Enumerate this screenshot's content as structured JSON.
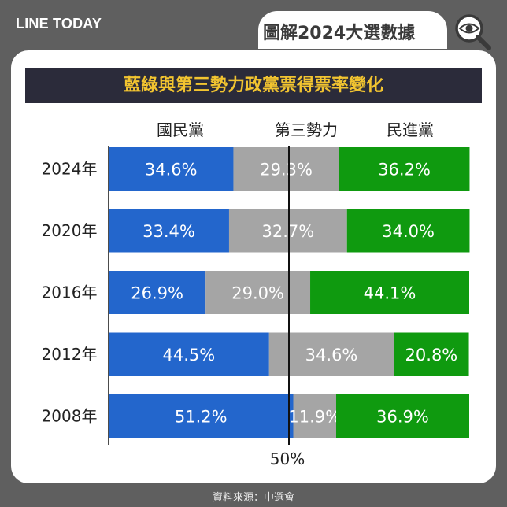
{
  "brand": "LINE TODAY",
  "header_badge": "圖解2024大選數據",
  "banner_title": "藍綠與第三勢力政黨票得票率變化",
  "source": "資料來源：中選會",
  "colors": {
    "kmt": "#2366cc",
    "third": "#a5a5a5",
    "dpp": "#0f9a0f",
    "banner_bg": "#2b2b3a",
    "banner_text": "#f2c430"
  },
  "chart_data": {
    "type": "bar",
    "stacked": "horizontal-100%",
    "categories": [
      "2024年",
      "2020年",
      "2016年",
      "2012年",
      "2008年"
    ],
    "series": [
      {
        "name": "國民黨",
        "values": [
          34.6,
          33.4,
          26.9,
          44.5,
          51.2
        ],
        "labels": [
          "34.6%",
          "33.4%",
          "26.9%",
          "44.5%",
          "51.2%"
        ]
      },
      {
        "name": "第三勢力",
        "values": [
          29.3,
          32.7,
          29.0,
          34.6,
          11.9
        ],
        "labels": [
          "29.3%",
          "32.7%",
          "29.0%",
          "34.6%",
          "11.9%"
        ]
      },
      {
        "name": "民進黨",
        "values": [
          36.2,
          34.0,
          44.1,
          20.8,
          36.9
        ],
        "labels": [
          "36.2%",
          "34.0%",
          "44.1%",
          "20.8%",
          "36.9%"
        ]
      }
    ],
    "reference_line": {
      "value": 50,
      "label": "50%"
    },
    "legend": "top"
  }
}
